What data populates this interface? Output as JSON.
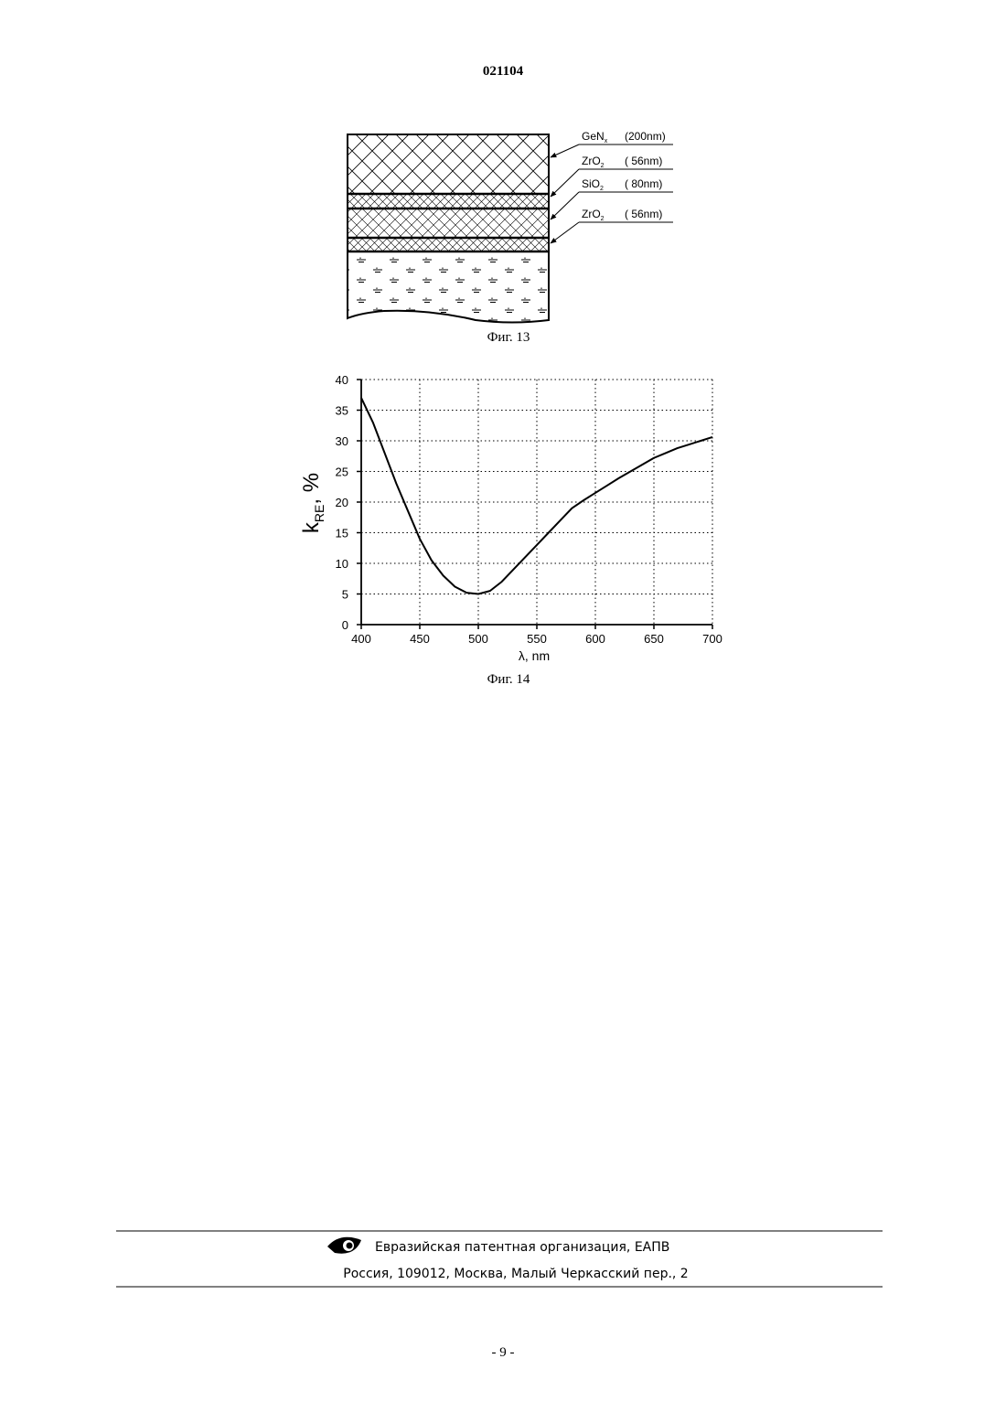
{
  "header": {
    "number": "021104"
  },
  "figure13": {
    "layers": [
      {
        "formula": "GeN",
        "subscript": "x",
        "thickness": "(200nm)"
      },
      {
        "formula": "ZrO",
        "subscript": "2",
        "thickness": "( 56nm)"
      },
      {
        "formula": "SiO",
        "subscript": "2",
        "thickness": "( 80nm)"
      },
      {
        "formula": "ZrO",
        "subscript": "2",
        "thickness": "( 56nm)"
      }
    ],
    "caption": "Фиг. 13"
  },
  "chart_data": {
    "type": "line",
    "ylabel": {
      "base": "k",
      "subscript": "RE",
      "unit": ", %"
    },
    "xlabel": "λ, nm",
    "x": [
      400,
      410,
      420,
      430,
      440,
      450,
      460,
      470,
      480,
      490,
      500,
      510,
      520,
      530,
      540,
      550,
      560,
      570,
      580,
      590,
      600,
      610,
      620,
      630,
      640,
      650,
      660,
      670,
      680,
      690,
      700
    ],
    "values": [
      37,
      33,
      28,
      23,
      18.5,
      14,
      10.5,
      8,
      6.2,
      5.2,
      5,
      5.5,
      7,
      9,
      11,
      13,
      15,
      17,
      19,
      20.3,
      21.5,
      22.7,
      23.9,
      25,
      26.1,
      27.2,
      28,
      28.8,
      29.4,
      30,
      30.6
    ],
    "color": "#000000",
    "xlim": [
      400,
      700
    ],
    "ylim": [
      0,
      40
    ],
    "xticks": [
      400,
      450,
      500,
      550,
      600,
      650,
      700
    ],
    "yticks": [
      0,
      5,
      10,
      15,
      20,
      25,
      30,
      35,
      40
    ],
    "grid": true
  },
  "figure14": {
    "caption": "Фиг. 14"
  },
  "footer": {
    "organization": "Евразийская патентная организация, ЕАПВ",
    "address": "Россия, 109012, Москва, Малый Черкасский пер., 2"
  },
  "page_number": "- 9 -"
}
